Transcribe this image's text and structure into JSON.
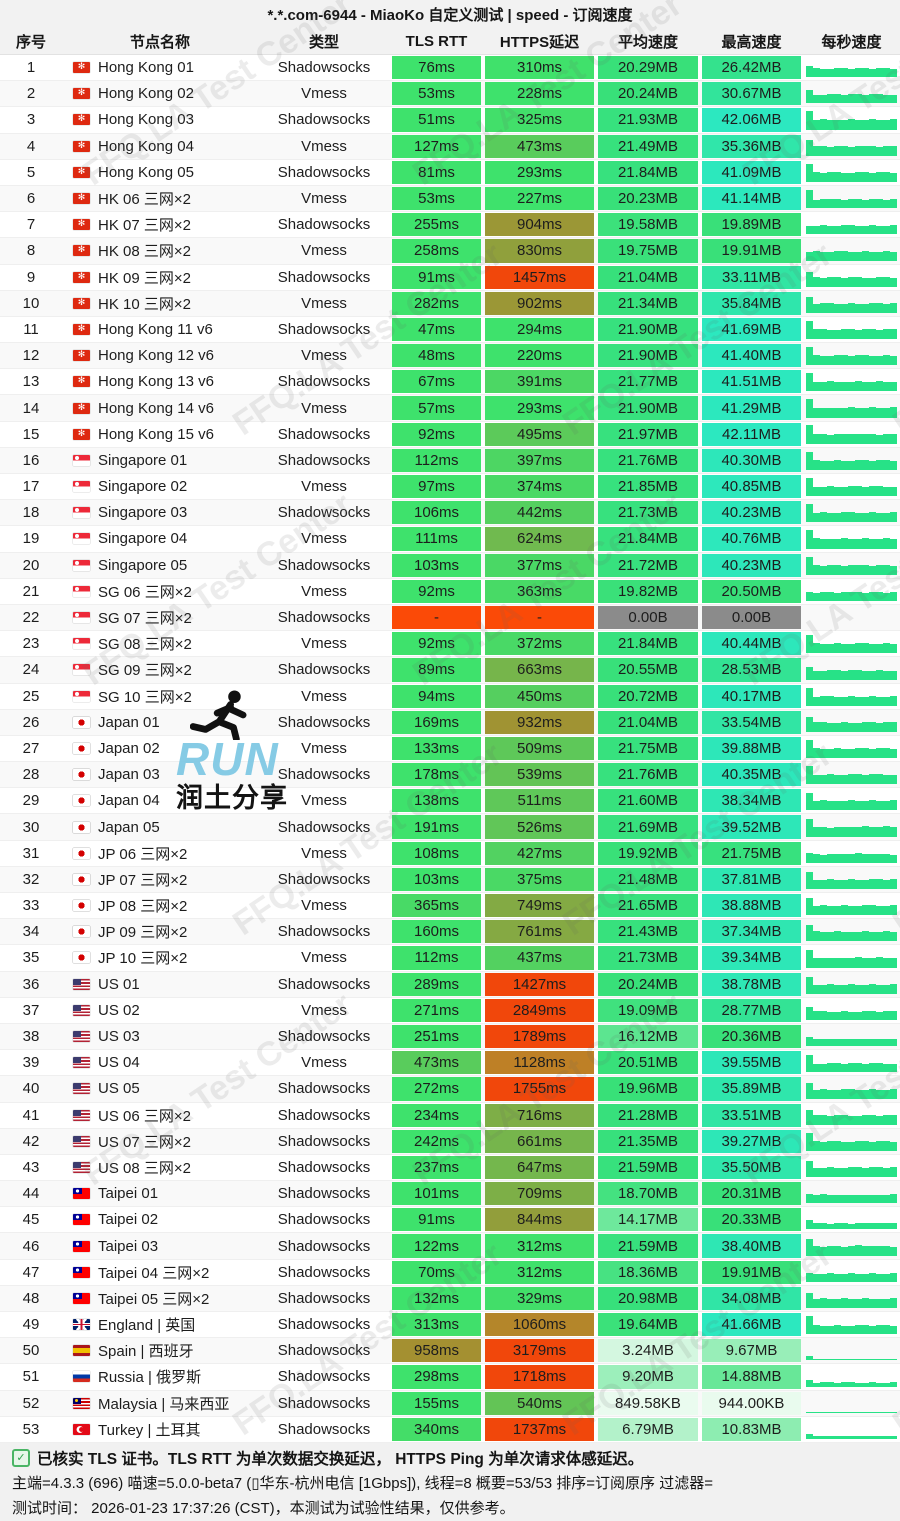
{
  "title": "*.*.com-6944 - MiaoKo 自定义测试 | speed - 订阅速度",
  "columns": [
    "序号",
    "节点名称",
    "类型",
    "TLS RTT",
    "HTTPS延迟",
    "平均速度",
    "最高速度",
    "每秒速度"
  ],
  "rows": [
    {
      "no": "1",
      "flag": "hk",
      "name": "Hong Kong 01",
      "type": "Shadowsocks",
      "tls": "76ms",
      "https": "310ms",
      "avg": "20.29MB",
      "max": "26.42MB"
    },
    {
      "no": "2",
      "flag": "hk",
      "name": "Hong Kong 02",
      "type": "Vmess",
      "tls": "53ms",
      "https": "228ms",
      "avg": "20.24MB",
      "max": "30.67MB"
    },
    {
      "no": "3",
      "flag": "hk",
      "name": "Hong Kong 03",
      "type": "Shadowsocks",
      "tls": "51ms",
      "https": "325ms",
      "avg": "21.93MB",
      "max": "42.06MB"
    },
    {
      "no": "4",
      "flag": "hk",
      "name": "Hong Kong 04",
      "type": "Vmess",
      "tls": "127ms",
      "https": "473ms",
      "avg": "21.49MB",
      "max": "35.36MB"
    },
    {
      "no": "5",
      "flag": "hk",
      "name": "Hong Kong 05",
      "type": "Shadowsocks",
      "tls": "81ms",
      "https": "293ms",
      "avg": "21.84MB",
      "max": "41.09MB"
    },
    {
      "no": "6",
      "flag": "hk",
      "name": "HK 06 三网×2",
      "type": "Vmess",
      "tls": "53ms",
      "https": "227ms",
      "avg": "20.23MB",
      "max": "41.14MB"
    },
    {
      "no": "7",
      "flag": "hk",
      "name": "HK 07 三网×2",
      "type": "Shadowsocks",
      "tls": "255ms",
      "https": "904ms",
      "avg": "19.58MB",
      "max": "19.89MB"
    },
    {
      "no": "8",
      "flag": "hk",
      "name": "HK 08 三网×2",
      "type": "Vmess",
      "tls": "258ms",
      "https": "830ms",
      "avg": "19.75MB",
      "max": "19.91MB"
    },
    {
      "no": "9",
      "flag": "hk",
      "name": "HK 09 三网×2",
      "type": "Shadowsocks",
      "tls": "91ms",
      "https": "1457ms",
      "avg": "21.04MB",
      "max": "33.11MB"
    },
    {
      "no": "10",
      "flag": "hk",
      "name": "HK 10 三网×2",
      "type": "Vmess",
      "tls": "282ms",
      "https": "902ms",
      "avg": "21.34MB",
      "max": "35.84MB"
    },
    {
      "no": "11",
      "flag": "hk",
      "name": "Hong Kong 11 v6",
      "type": "Shadowsocks",
      "tls": "47ms",
      "https": "294ms",
      "avg": "21.90MB",
      "max": "41.69MB"
    },
    {
      "no": "12",
      "flag": "hk",
      "name": "Hong Kong 12 v6",
      "type": "Vmess",
      "tls": "48ms",
      "https": "220ms",
      "avg": "21.90MB",
      "max": "41.40MB"
    },
    {
      "no": "13",
      "flag": "hk",
      "name": "Hong Kong 13 v6",
      "type": "Shadowsocks",
      "tls": "67ms",
      "https": "391ms",
      "avg": "21.77MB",
      "max": "41.51MB"
    },
    {
      "no": "14",
      "flag": "hk",
      "name": "Hong Kong 14 v6",
      "type": "Vmess",
      "tls": "57ms",
      "https": "293ms",
      "avg": "21.90MB",
      "max": "41.29MB"
    },
    {
      "no": "15",
      "flag": "hk",
      "name": "Hong Kong 15 v6",
      "type": "Shadowsocks",
      "tls": "92ms",
      "https": "495ms",
      "avg": "21.97MB",
      "max": "42.11MB"
    },
    {
      "no": "16",
      "flag": "sg",
      "name": "Singapore 01",
      "type": "Shadowsocks",
      "tls": "112ms",
      "https": "397ms",
      "avg": "21.76MB",
      "max": "40.30MB"
    },
    {
      "no": "17",
      "flag": "sg",
      "name": "Singapore 02",
      "type": "Vmess",
      "tls": "97ms",
      "https": "374ms",
      "avg": "21.85MB",
      "max": "40.85MB"
    },
    {
      "no": "18",
      "flag": "sg",
      "name": "Singapore 03",
      "type": "Shadowsocks",
      "tls": "106ms",
      "https": "442ms",
      "avg": "21.73MB",
      "max": "40.23MB"
    },
    {
      "no": "19",
      "flag": "sg",
      "name": "Singapore 04",
      "type": "Vmess",
      "tls": "111ms",
      "https": "624ms",
      "avg": "21.84MB",
      "max": "40.76MB"
    },
    {
      "no": "20",
      "flag": "sg",
      "name": "Singapore 05",
      "type": "Shadowsocks",
      "tls": "103ms",
      "https": "377ms",
      "avg": "21.72MB",
      "max": "40.23MB"
    },
    {
      "no": "21",
      "flag": "sg",
      "name": "SG 06 三网×2",
      "type": "Vmess",
      "tls": "92ms",
      "https": "363ms",
      "avg": "19.82MB",
      "max": "20.50MB"
    },
    {
      "no": "22",
      "flag": "sg",
      "name": "SG 07 三网×2",
      "type": "Shadowsocks",
      "tls": "-",
      "https": "-",
      "avg": "0.00B",
      "max": "0.00B"
    },
    {
      "no": "23",
      "flag": "sg",
      "name": "SG 08 三网×2",
      "type": "Vmess",
      "tls": "92ms",
      "https": "372ms",
      "avg": "21.84MB",
      "max": "40.44MB"
    },
    {
      "no": "24",
      "flag": "sg",
      "name": "SG 09 三网×2",
      "type": "Shadowsocks",
      "tls": "89ms",
      "https": "663ms",
      "avg": "20.55MB",
      "max": "28.53MB"
    },
    {
      "no": "25",
      "flag": "sg",
      "name": "SG 10 三网×2",
      "type": "Vmess",
      "tls": "94ms",
      "https": "450ms",
      "avg": "20.72MB",
      "max": "40.17MB"
    },
    {
      "no": "26",
      "flag": "jp",
      "name": "Japan 01",
      "type": "Shadowsocks",
      "tls": "169ms",
      "https": "932ms",
      "avg": "21.04MB",
      "max": "33.54MB"
    },
    {
      "no": "27",
      "flag": "jp",
      "name": "Japan 02",
      "type": "Vmess",
      "tls": "133ms",
      "https": "509ms",
      "avg": "21.75MB",
      "max": "39.88MB"
    },
    {
      "no": "28",
      "flag": "jp",
      "name": "Japan 03",
      "type": "Shadowsocks",
      "tls": "178ms",
      "https": "539ms",
      "avg": "21.76MB",
      "max": "40.35MB"
    },
    {
      "no": "29",
      "flag": "jp",
      "name": "Japan 04",
      "type": "Vmess",
      "tls": "138ms",
      "https": "511ms",
      "avg": "21.60MB",
      "max": "38.34MB"
    },
    {
      "no": "30",
      "flag": "jp",
      "name": "Japan 05",
      "type": "Shadowsocks",
      "tls": "191ms",
      "https": "526ms",
      "avg": "21.69MB",
      "max": "39.52MB"
    },
    {
      "no": "31",
      "flag": "jp",
      "name": "JP 06 三网×2",
      "type": "Vmess",
      "tls": "108ms",
      "https": "427ms",
      "avg": "19.92MB",
      "max": "21.75MB"
    },
    {
      "no": "32",
      "flag": "jp",
      "name": "JP 07 三网×2",
      "type": "Shadowsocks",
      "tls": "103ms",
      "https": "375ms",
      "avg": "21.48MB",
      "max": "37.81MB"
    },
    {
      "no": "33",
      "flag": "jp",
      "name": "JP 08 三网×2",
      "type": "Vmess",
      "tls": "365ms",
      "https": "749ms",
      "avg": "21.65MB",
      "max": "38.88MB"
    },
    {
      "no": "34",
      "flag": "jp",
      "name": "JP 09 三网×2",
      "type": "Shadowsocks",
      "tls": "160ms",
      "https": "761ms",
      "avg": "21.43MB",
      "max": "37.34MB"
    },
    {
      "no": "35",
      "flag": "jp",
      "name": "JP 10 三网×2",
      "type": "Vmess",
      "tls": "112ms",
      "https": "437ms",
      "avg": "21.73MB",
      "max": "39.34MB"
    },
    {
      "no": "36",
      "flag": "us",
      "name": "US 01",
      "type": "Shadowsocks",
      "tls": "289ms",
      "https": "1427ms",
      "avg": "20.24MB",
      "max": "38.78MB"
    },
    {
      "no": "37",
      "flag": "us",
      "name": "US 02",
      "type": "Vmess",
      "tls": "271ms",
      "https": "2849ms",
      "avg": "19.09MB",
      "max": "28.77MB"
    },
    {
      "no": "38",
      "flag": "us",
      "name": "US 03",
      "type": "Shadowsocks",
      "tls": "251ms",
      "https": "1789ms",
      "avg": "16.12MB",
      "max": "20.36MB"
    },
    {
      "no": "39",
      "flag": "us",
      "name": "US 04",
      "type": "Vmess",
      "tls": "473ms",
      "https": "1128ms",
      "avg": "20.51MB",
      "max": "39.55MB"
    },
    {
      "no": "40",
      "flag": "us",
      "name": "US 05",
      "type": "Shadowsocks",
      "tls": "272ms",
      "https": "1755ms",
      "avg": "19.96MB",
      "max": "35.89MB"
    },
    {
      "no": "41",
      "flag": "us",
      "name": "US 06 三网×2",
      "type": "Shadowsocks",
      "tls": "234ms",
      "https": "716ms",
      "avg": "21.28MB",
      "max": "33.51MB"
    },
    {
      "no": "42",
      "flag": "us",
      "name": "US 07 三网×2",
      "type": "Shadowsocks",
      "tls": "242ms",
      "https": "661ms",
      "avg": "21.35MB",
      "max": "39.27MB"
    },
    {
      "no": "43",
      "flag": "us",
      "name": "US 08 三网×2",
      "type": "Shadowsocks",
      "tls": "237ms",
      "https": "647ms",
      "avg": "21.59MB",
      "max": "35.50MB"
    },
    {
      "no": "44",
      "flag": "tw",
      "name": "Taipei 01",
      "type": "Shadowsocks",
      "tls": "101ms",
      "https": "709ms",
      "avg": "18.70MB",
      "max": "20.31MB"
    },
    {
      "no": "45",
      "flag": "tw",
      "name": "Taipei 02",
      "type": "Shadowsocks",
      "tls": "91ms",
      "https": "844ms",
      "avg": "14.17MB",
      "max": "20.33MB"
    },
    {
      "no": "46",
      "flag": "tw",
      "name": "Taipei 03",
      "type": "Shadowsocks",
      "tls": "122ms",
      "https": "312ms",
      "avg": "21.59MB",
      "max": "38.40MB"
    },
    {
      "no": "47",
      "flag": "tw",
      "name": "Taipei 04 三网×2",
      "type": "Shadowsocks",
      "tls": "70ms",
      "https": "312ms",
      "avg": "18.36MB",
      "max": "19.91MB"
    },
    {
      "no": "48",
      "flag": "tw",
      "name": "Taipei 05 三网×2",
      "type": "Shadowsocks",
      "tls": "132ms",
      "https": "329ms",
      "avg": "20.98MB",
      "max": "34.08MB"
    },
    {
      "no": "49",
      "flag": "gb",
      "name": "England | 英国",
      "type": "Shadowsocks",
      "tls": "313ms",
      "https": "1060ms",
      "avg": "19.64MB",
      "max": "41.66MB"
    },
    {
      "no": "50",
      "flag": "es",
      "name": "Spain | 西班牙",
      "type": "Shadowsocks",
      "tls": "958ms",
      "https": "3179ms",
      "avg": "3.24MB",
      "max": "9.67MB"
    },
    {
      "no": "51",
      "flag": "ru",
      "name": "Russia | 俄罗斯",
      "type": "Shadowsocks",
      "tls": "298ms",
      "https": "1718ms",
      "avg": "9.20MB",
      "max": "14.88MB"
    },
    {
      "no": "52",
      "flag": "my",
      "name": "Malaysia | 马来西亚",
      "type": "Shadowsocks",
      "tls": "155ms",
      "https": "540ms",
      "avg": "849.58KB",
      "max": "944.00KB"
    },
    {
      "no": "53",
      "flag": "tr",
      "name": "Turkey | 土耳其",
      "type": "Shadowsocks",
      "tls": "340ms",
      "https": "1737ms",
      "avg": "6.79MB",
      "max": "10.83MB"
    }
  ],
  "footer": {
    "check_glyph": "✓",
    "line1": "已核实 TLS 证书。TLS RTT 为单次数据交换延迟， HTTPS Ping 为单次请求体感延迟。",
    "line2": "主端=4.3.3 (696) 喵速=5.0.0-beta7 (▯华东-杭州电信 [1Gbps]), 线程=8 概要=53/53 排序=订阅原序 过滤器=",
    "line3": "测试时间： 2026-01-23 17:37:26 (CST)，本测试为试验性结果，仅供参考。"
  },
  "watermark": {
    "text": "FFQ.LA Test Center",
    "run": "RUN",
    "run_sub": "润土分享"
  },
  "colors": {
    "latency_good": "#3ee26c",
    "latency_mid": "#aa8b2d",
    "latency_bad": "#f1470b",
    "failed_cell": "#fb4a07",
    "speed_green": "#38e078",
    "speed_turquoise": "#2ce8c0",
    "zero_speed_gray": "#8b8b8b",
    "sparkline": "#27e287",
    "bar_bg": "#f2f2f2"
  }
}
